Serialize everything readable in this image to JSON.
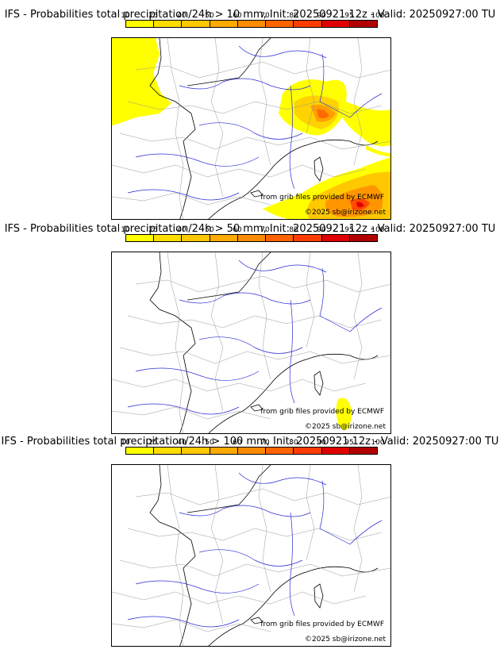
{
  "colorbar": {
    "ticks": [
      "10",
      "25",
      "40",
      "50",
      "60",
      "70",
      "80",
      "90",
      "95",
      "100"
    ],
    "colors": [
      "#ffff00",
      "#ffdd00",
      "#ffc800",
      "#ffaa00",
      "#ff8c00",
      "#ff6400",
      "#ff3c00",
      "#e00000",
      "#b00000",
      "#7a0000"
    ]
  },
  "panels": [
    {
      "title": "IFS - Probabilities total precipitation/24h > 10 mm, Init: 20250921 12z - Valid: 20250927:00 TU",
      "credit_source": "from grib files provided by ECMWF",
      "credit_copyright": "©2025 sb@irizone.net"
    },
    {
      "title": "IFS - Probabilities total precipitation/24h > 50 mm, Init: 20250921 12z - Valid: 20250927:00 TU",
      "credit_source": "from grib files provided by ECMWF",
      "credit_copyright": "©2025 sb@irizone.net"
    },
    {
      "title": "IFS - Probabilities total precipitation/24h > 100 mm, Init: 20250921 12z - Valid: 20250927:00 TU",
      "credit_source": "from grib files provided by ECMWF",
      "credit_copyright": "©2025 sb@irizone.net"
    }
  ]
}
